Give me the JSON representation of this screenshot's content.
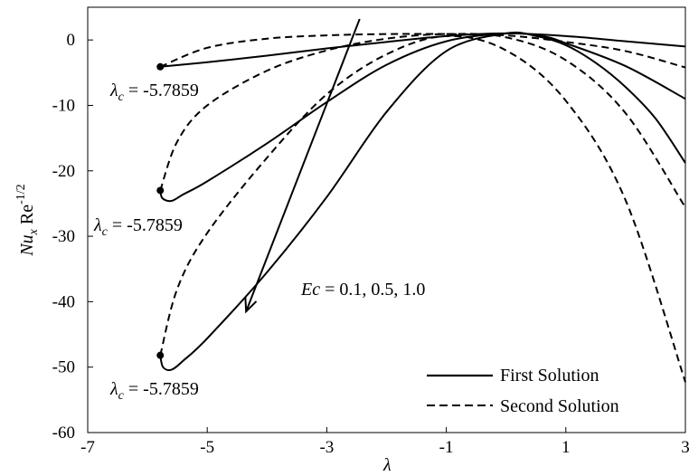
{
  "chart_data": {
    "type": "line",
    "xlabel": "λ",
    "ylabel": {
      "base": "Nu",
      "sub": "x",
      "mid": " Re",
      "sup": "-1/2"
    },
    "xlim": [
      -7,
      3
    ],
    "ylim": [
      -60,
      5
    ],
    "xticks": [
      -7,
      -5,
      -3,
      -1,
      1,
      3
    ],
    "yticks": [
      0,
      -10,
      -20,
      -30,
      -40,
      -50,
      -60
    ],
    "grid": false,
    "legend_position": "bottom-right",
    "legend": [
      {
        "label": "First Solution",
        "style": "solid"
      },
      {
        "label": "Second Solution",
        "style": "dashed"
      }
    ],
    "series": [
      {
        "style": "solid",
        "points": [
          [
            -5.7859,
            -4.1
          ],
          [
            -5,
            -3.4
          ],
          [
            -4,
            -2.4
          ],
          [
            -3,
            -1.3
          ],
          [
            -2,
            -0.3
          ],
          [
            -1,
            0.6
          ],
          [
            0,
            1.0
          ],
          [
            1,
            0.6
          ],
          [
            2,
            -0.2
          ],
          [
            3,
            -1.0
          ]
        ]
      },
      {
        "style": "solid",
        "points": [
          [
            -5.7859,
            -23.0
          ],
          [
            -5.75,
            -24.2
          ],
          [
            -5.6,
            -24.6
          ],
          [
            -5.4,
            -23.6
          ],
          [
            -5,
            -21.6
          ],
          [
            -4,
            -15.8
          ],
          [
            -3,
            -9.5
          ],
          [
            -2,
            -3.8
          ],
          [
            -1,
            -0.2
          ],
          [
            0,
            1.0
          ],
          [
            0.6,
            0.6
          ],
          [
            1,
            -0.5
          ],
          [
            2,
            -4.0
          ],
          [
            3,
            -9.0
          ]
        ]
      },
      {
        "style": "solid",
        "points": [
          [
            -5.7859,
            -48.2
          ],
          [
            -5.74,
            -50.0
          ],
          [
            -5.6,
            -50.4
          ],
          [
            -5.4,
            -49.0
          ],
          [
            -5,
            -45.6
          ],
          [
            -4,
            -35.5
          ],
          [
            -3,
            -24.0
          ],
          [
            -2,
            -11.0
          ],
          [
            -1,
            -1.7
          ],
          [
            0,
            1.0
          ],
          [
            0.5,
            0.6
          ],
          [
            1,
            -0.8
          ],
          [
            1.5,
            -3.5
          ],
          [
            2,
            -7.2
          ],
          [
            2.5,
            -12.0
          ],
          [
            3,
            -18.8
          ]
        ]
      },
      {
        "style": "dashed",
        "points": [
          [
            -5.7859,
            -4.1
          ],
          [
            -5,
            -1.2
          ],
          [
            -4,
            0.2
          ],
          [
            -3,
            0.7
          ],
          [
            -2,
            0.9
          ],
          [
            -1,
            0.9
          ],
          [
            0,
            0.7
          ],
          [
            1,
            -0.3
          ],
          [
            2,
            -1.7
          ],
          [
            3,
            -4.2
          ]
        ]
      },
      {
        "style": "dashed",
        "points": [
          [
            -5.7859,
            -23.0
          ],
          [
            -5.5,
            -15.5
          ],
          [
            -5,
            -10.0
          ],
          [
            -4,
            -4.7
          ],
          [
            -3,
            -1.6
          ],
          [
            -2,
            0.2
          ],
          [
            -1,
            0.9
          ],
          [
            0,
            0.4
          ],
          [
            1,
            -3.1
          ],
          [
            2,
            -11.2
          ],
          [
            3,
            -25.6
          ]
        ]
      },
      {
        "style": "dashed",
        "points": [
          [
            -5.7859,
            -48.2
          ],
          [
            -5.5,
            -38.0
          ],
          [
            -5,
            -29.5
          ],
          [
            -4,
            -18.0
          ],
          [
            -3,
            -8.3
          ],
          [
            -2,
            -2.2
          ],
          [
            -1,
            0.6
          ],
          [
            0,
            -1.6
          ],
          [
            1,
            -9.3
          ],
          [
            2,
            -24.5
          ],
          [
            3,
            -52.3
          ]
        ]
      }
    ],
    "critical_points": [
      {
        "x": -5.7859,
        "y": -4.1,
        "label_base": "λ",
        "label_sub": "c",
        "label_rest": " = -5.7859"
      },
      {
        "x": -5.7859,
        "y": -23.0,
        "label_base": "λ",
        "label_sub": "c",
        "label_rest": " = -5.7859"
      },
      {
        "x": -5.7859,
        "y": -48.2,
        "label_base": "λ",
        "label_sub": "c",
        "label_rest": " = -5.7859"
      }
    ],
    "annotation": {
      "italic": "Ec",
      "rest": " = 0.1, 0.5, 1.0",
      "arrow_from": [
        -2.45,
        3.2
      ],
      "arrow_to": [
        -4.35,
        -41.5
      ]
    }
  }
}
